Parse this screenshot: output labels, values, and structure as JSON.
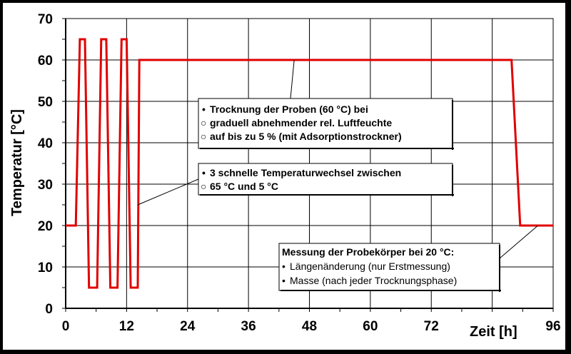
{
  "chart_data": {
    "type": "line",
    "title": "",
    "xlabel": "Zeit [h]",
    "ylabel": "Temperatur [°C]",
    "xlim": [
      0,
      96
    ],
    "ylim": [
      0,
      70
    ],
    "x_ticks": [
      0,
      12,
      24,
      36,
      48,
      60,
      72,
      96
    ],
    "x_tick_labels": [
      "0",
      "12",
      "24",
      "36",
      "48",
      "60",
      "72",
      "96"
    ],
    "y_ticks": [
      0,
      10,
      20,
      30,
      40,
      50,
      60,
      70
    ],
    "y_tick_labels": [
      "0",
      "10",
      "20",
      "30",
      "40",
      "50",
      "60",
      "70"
    ],
    "grid": true,
    "series_color": "#e00000",
    "series": [
      {
        "name": "",
        "x": [
          0,
          2,
          2.8,
          3.8,
          4.6,
          6.2,
          7.0,
          8.0,
          8.8,
          10.2,
          11.0,
          12.0,
          12.8,
          14.2,
          14.5,
          87.8,
          89.5,
          96
        ],
        "y": [
          20,
          20,
          65,
          65,
          5,
          5,
          65,
          65,
          5,
          5,
          65,
          65,
          5,
          5,
          60,
          60,
          20,
          20
        ]
      }
    ],
    "annotations": [
      {
        "lines": [
          {
            "bullet": "•",
            "text": "Trocknung der Proben (60 °C) bei"
          },
          {
            "bullet": "○",
            "text": "graduell abnehmender rel. Luftfeuchte"
          },
          {
            "bullet": "○",
            "text": "auf bis zu 5 % (mit Adsorptionstrockner)"
          }
        ],
        "points_to": {
          "x": 45,
          "y": 60
        }
      },
      {
        "lines": [
          {
            "bullet": "•",
            "text": "3 schnelle Temperaturwechsel zwischen"
          },
          {
            "bullet": "○",
            "text": "65 °C und 5 °C"
          }
        ],
        "points_to": {
          "x": 14.2,
          "y": 25
        }
      },
      {
        "heading": "Messung der Probekörper bei 20 °C:",
        "lines": [
          {
            "bullet": "•",
            "text": "Längenänderung  (nur Erstmessung)"
          },
          {
            "bullet": "•",
            "text": "Masse (nach jeder Trocknungsphase)"
          }
        ],
        "points_to": {
          "x": 93,
          "y": 20
        }
      }
    ]
  }
}
